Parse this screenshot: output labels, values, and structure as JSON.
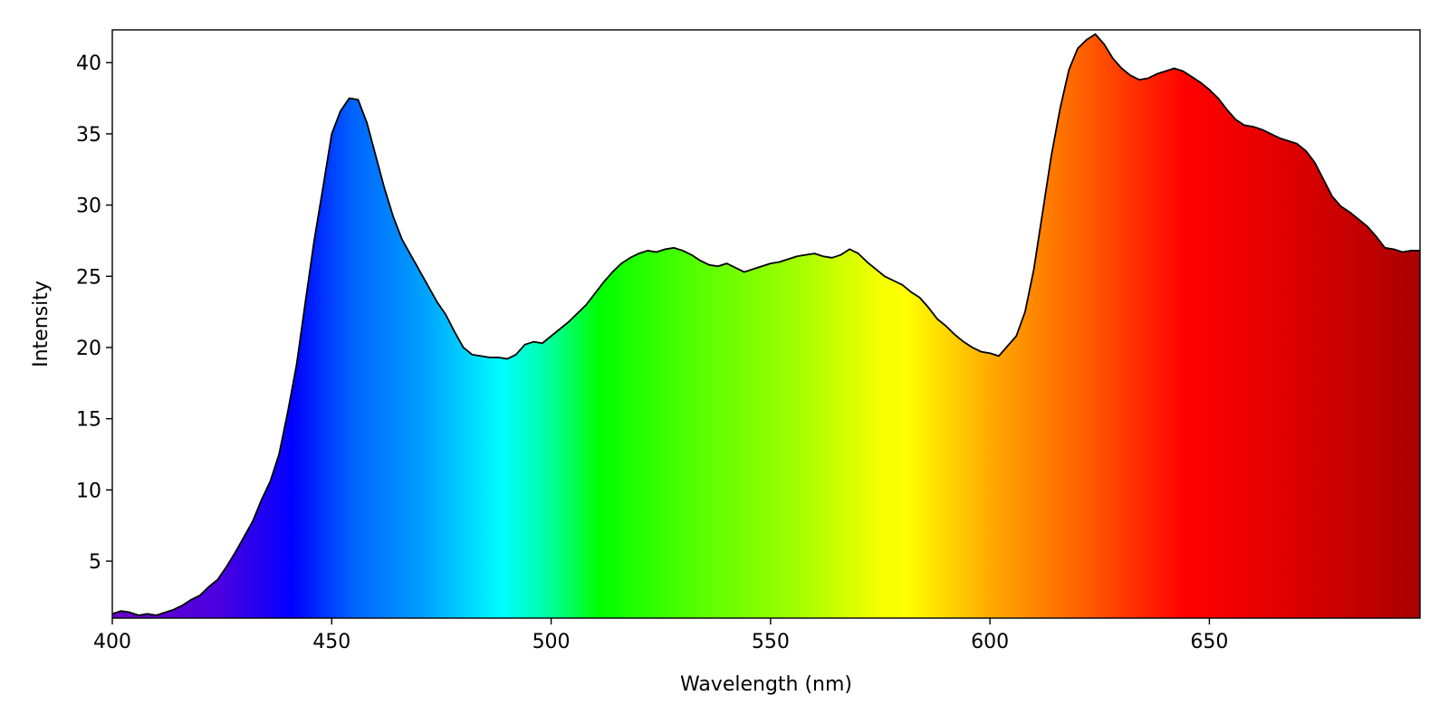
{
  "chart_data": {
    "type": "area",
    "title": "",
    "xlabel": "Wavelength (nm)",
    "ylabel": "Intensity",
    "xlim": [
      400,
      698
    ],
    "ylim": [
      1.0,
      42.3
    ],
    "xticks": [
      400,
      450,
      500,
      550,
      600,
      650
    ],
    "yticks": [
      5,
      10,
      15,
      20,
      25,
      30,
      35,
      40
    ],
    "grid": false,
    "legend": "none",
    "fill": "visible-spectrum gradient",
    "line_color": "#000000",
    "series": [
      {
        "x": [
          400,
          402,
          404,
          406,
          408,
          410,
          412,
          414,
          416,
          418,
          420,
          422,
          424,
          426,
          428,
          430,
          432,
          434,
          436,
          438,
          440,
          442,
          444,
          446,
          448,
          450,
          452,
          454,
          456,
          458,
          460,
          462,
          464,
          466,
          468,
          470,
          472,
          474,
          476,
          478,
          480,
          482,
          484,
          486,
          488,
          490,
          492,
          494,
          496,
          498,
          500,
          502,
          504,
          506,
          508,
          510,
          512,
          514,
          516,
          518,
          520,
          522,
          524,
          526,
          528,
          530,
          532,
          534,
          536,
          538,
          540,
          542,
          544,
          546,
          548,
          550,
          552,
          554,
          556,
          558,
          560,
          562,
          564,
          566,
          568,
          570,
          572,
          574,
          576,
          578,
          580,
          582,
          584,
          586,
          588,
          590,
          592,
          594,
          596,
          598,
          600,
          602,
          604,
          606,
          608,
          610,
          612,
          614,
          616,
          618,
          620,
          622,
          624,
          626,
          628,
          630,
          632,
          634,
          636,
          638,
          640,
          642,
          644,
          646,
          648,
          650,
          652,
          654,
          656,
          658,
          660,
          662,
          664,
          666,
          668,
          670,
          672,
          674,
          676,
          678,
          680,
          682,
          684,
          686,
          688,
          690,
          692,
          694,
          696,
          698
        ],
        "values": [
          1.3,
          1.5,
          1.4,
          1.2,
          1.3,
          1.2,
          1.4,
          1.6,
          1.9,
          2.3,
          2.6,
          3.2,
          3.7,
          4.6,
          5.6,
          6.7,
          7.8,
          9.3,
          10.6,
          12.5,
          15.5,
          18.8,
          23.2,
          27.5,
          31.2,
          35.0,
          36.6,
          37.5,
          37.4,
          35.8,
          33.5,
          31.2,
          29.2,
          27.6,
          26.5,
          25.4,
          24.3,
          23.2,
          22.3,
          21.1,
          20.0,
          19.5,
          19.4,
          19.3,
          19.3,
          19.2,
          19.5,
          20.2,
          20.4,
          20.3,
          20.8,
          21.3,
          21.8,
          22.4,
          23.0,
          23.8,
          24.6,
          25.3,
          25.9,
          26.3,
          26.6,
          26.8,
          26.7,
          26.9,
          27.0,
          26.8,
          26.5,
          26.1,
          25.8,
          25.7,
          25.9,
          25.6,
          25.3,
          25.5,
          25.7,
          25.9,
          26.0,
          26.2,
          26.4,
          26.5,
          26.6,
          26.4,
          26.3,
          26.5,
          26.9,
          26.6,
          26.0,
          25.5,
          25.0,
          24.7,
          24.4,
          23.9,
          23.5,
          22.8,
          22.0,
          21.5,
          20.9,
          20.4,
          20.0,
          19.7,
          19.6,
          19.4,
          20.1,
          20.8,
          22.5,
          25.5,
          29.5,
          33.5,
          36.8,
          39.5,
          41.0,
          41.6,
          42.0,
          41.3,
          40.3,
          39.6,
          39.1,
          38.8,
          38.9,
          39.2,
          39.4,
          39.6,
          39.4,
          39.0,
          38.6,
          38.1,
          37.5,
          36.7,
          36.0,
          35.6,
          35.5,
          35.3,
          35.0,
          34.7,
          34.5,
          34.3,
          33.8,
          33.0,
          31.8,
          30.6,
          29.9,
          29.5,
          29.0,
          28.5,
          27.8,
          27.0,
          26.9,
          26.7,
          26.8,
          26.8
        ]
      }
    ]
  }
}
